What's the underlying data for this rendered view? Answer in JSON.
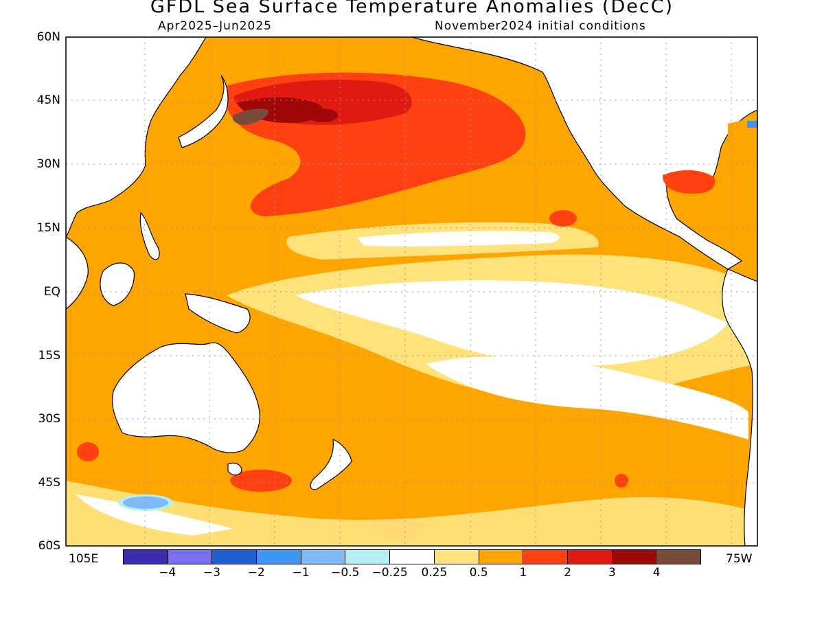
{
  "title": "GFDL Sea Surface Temperature Anomalies (DecC)",
  "subtitle_left": "Apr2025–Jun2025",
  "subtitle_right": "November2024 initial conditions",
  "lat_labels": [
    "60N",
    "45N",
    "30N",
    "15N",
    "EQ",
    "15S",
    "30S",
    "45S",
    "60S"
  ],
  "lon_labels": {
    "left": "105E",
    "right": "75W"
  },
  "legend": {
    "colors": [
      "#3a2bb0",
      "#7b6ff0",
      "#1f5fd0",
      "#3f95f0",
      "#7fbaf5",
      "#b4f0f2",
      "#ffffff",
      "#ffe27a",
      "#ffa500",
      "#ff4010",
      "#e01a10",
      "#a00808",
      "#7a4a3a"
    ],
    "ticks": [
      "−4",
      "−3",
      "−2",
      "−1",
      "−0.5",
      "−0.25",
      "0.25",
      "0.5",
      "1",
      "2",
      "3",
      "4"
    ]
  },
  "map_colors": {
    "anom_025": "#ffe27a",
    "anom_05": "#ffa500",
    "anom_1": "#ff4010",
    "anom_2": "#e01a10",
    "anom_3": "#a00808",
    "anom_4": "#7a4a3a",
    "anom_neg05": "#b4f0f2",
    "anom_neg1": "#7fbaf5",
    "land": "#ffffff",
    "coast": "#000000",
    "grid": "#9a9a9a"
  }
}
